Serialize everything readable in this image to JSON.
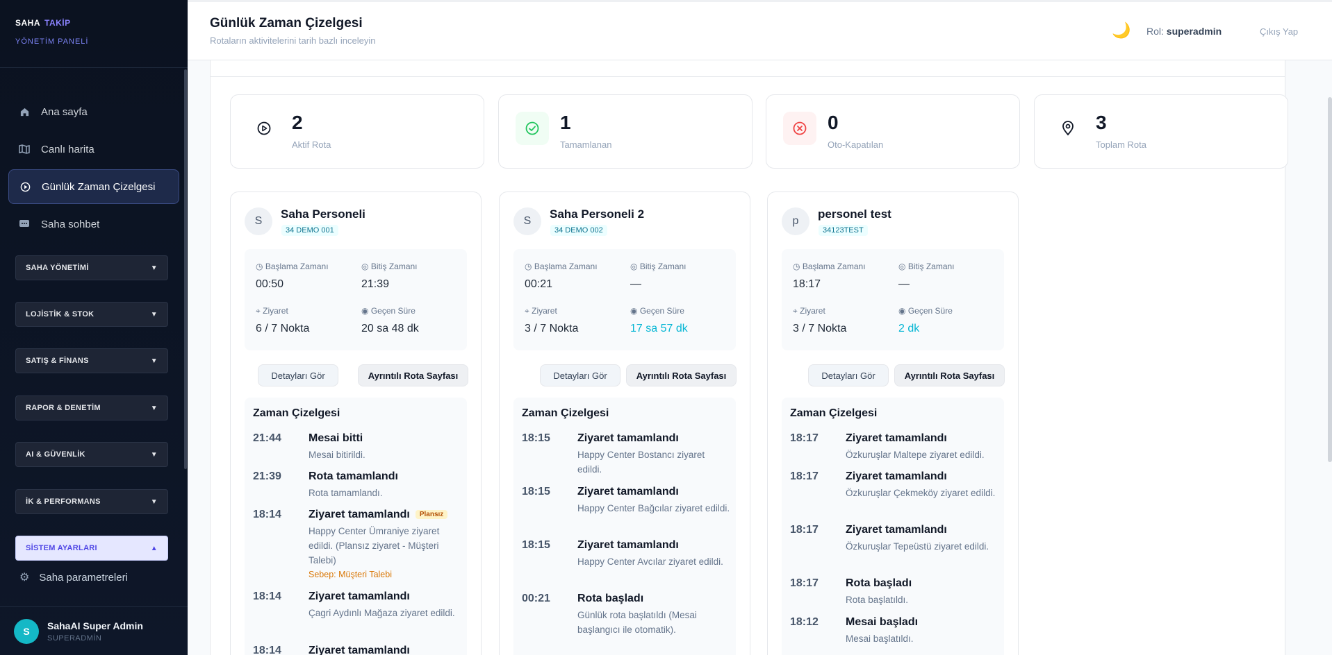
{
  "brand": {
    "word1": "SAHA",
    "word2": "TAKİP",
    "subtitle": "YÖNETİM PANELİ"
  },
  "sidebar": {
    "nav": [
      {
        "label": "Ana sayfa",
        "icon": "home-icon"
      },
      {
        "label": "Canlı harita",
        "icon": "map-icon"
      },
      {
        "label": "Günlük Zaman Çizelgesi",
        "icon": "play-circle-icon",
        "active": true
      },
      {
        "label": "Saha sohbet",
        "icon": "chat-icon"
      }
    ],
    "groups": [
      {
        "label": "SAHA YÖNETİMİ",
        "open": false
      },
      {
        "label": "LOJİSTİK & STOK",
        "open": false
      },
      {
        "label": "SATIŞ & FİNANS",
        "open": false
      },
      {
        "label": "RAPOR & DENETİM",
        "open": false
      },
      {
        "label": "AI & GÜVENLİK",
        "open": false
      },
      {
        "label": "İK & PERFORMANS",
        "open": false
      },
      {
        "label": "SİSTEM AYARLARI",
        "open": true
      }
    ],
    "sub_item": "Saha parametreleri",
    "user": {
      "initial": "S",
      "name": "SahaAI Super Admin",
      "role": "SUPERADMİN"
    }
  },
  "header": {
    "title": "Günlük Zaman Çizelgesi",
    "subtitle": "Rotaların aktivitelerini tarih bazlı inceleyin",
    "role_label": "Rol:",
    "role_value": "superadmin",
    "logout": "Çıkış Yap"
  },
  "stats": [
    {
      "value": "2",
      "label": "Aktif Rota",
      "icon": "play-circle-icon"
    },
    {
      "value": "1",
      "label": "Tamamlanan",
      "icon": "check-circle-icon",
      "color": "#22c55e"
    },
    {
      "value": "0",
      "label": "Oto-Kapatılan",
      "icon": "x-circle-icon",
      "color": "#ef4444"
    },
    {
      "value": "3",
      "label": "Toplam Rota",
      "icon": "map-pin-icon"
    }
  ],
  "labels": {
    "start": "Başlama Zamanı",
    "end": "Bitiş Zamanı",
    "visit": "Ziyaret",
    "elapsed": "Geçen Süre",
    "details_btn": "Detayları Gör",
    "route_btn": "Ayrıntılı Rota Sayfası",
    "timeline_title": "Zaman Çizelgesi",
    "unplanned": "Plansız"
  },
  "routes": [
    {
      "initial": "S",
      "name": "Saha Personeli",
      "plate": "34 DEMO 001",
      "start": "00:50",
      "end": "21:39",
      "visit": "6 / 7 Nokta",
      "elapsed": "20 sa 48 dk",
      "events": [
        {
          "time": "21:44",
          "title": "Mesai bitti",
          "desc": "Mesai bitirildi."
        },
        {
          "time": "21:39",
          "title": "Rota tamamlandı",
          "desc": "Rota tamamlandı."
        },
        {
          "time": "18:14",
          "title": "Ziyaret tamamlandı",
          "desc": "Happy Center Ümraniye ziyaret edildi. (Plansız ziyaret - Müşteri Talebi)",
          "reason": "Sebep: Müşteri Talebi"
        },
        {
          "time": "18:14",
          "title": "Ziyaret tamamlandı",
          "desc": "Çagri Aydınlı Mağaza ziyaret edildi."
        },
        {
          "time": "18:14",
          "title": "Ziyaret tamamlandı",
          "desc": ""
        }
      ]
    },
    {
      "initial": "S",
      "name": "Saha Personeli 2",
      "plate": "34 DEMO 002",
      "start": "00:21",
      "end": "—",
      "visit": "3 / 7 Nokta",
      "elapsed": "17 sa 57 dk",
      "events": [
        {
          "time": "18:15",
          "title": "Ziyaret tamamlandı",
          "desc": "Happy Center Bostancı ziyaret edildi."
        },
        {
          "time": "18:15",
          "title": "Ziyaret tamamlandı",
          "desc": "Happy Center Bağcılar ziyaret edildi."
        },
        {
          "time": "18:15",
          "title": "Ziyaret tamamlandı",
          "desc": "Happy Center Avcılar ziyaret edildi."
        },
        {
          "time": "00:21",
          "title": "Rota başladı",
          "desc": "Günlük rota başlatıldı (Mesai başlangıcı ile otomatik)."
        }
      ]
    },
    {
      "initial": "p",
      "name": "personel test",
      "plate": "34123TEST",
      "start": "18:17",
      "end": "—",
      "visit": "3 / 7 Nokta",
      "elapsed": "2 dk",
      "events": [
        {
          "time": "18:17",
          "title": "Ziyaret tamamlandı",
          "desc": "Özkuruşlar Maltepe ziyaret edildi."
        },
        {
          "time": "18:17",
          "title": "Ziyaret tamamlandı",
          "desc": "Özkuruşlar Çekmeköy ziyaret edildi."
        },
        {
          "time": "18:17",
          "title": "Ziyaret tamamlandı",
          "desc": "Özkuruşlar Tepeüstü ziyaret edildi."
        },
        {
          "time": "18:17",
          "title": "Rota başladı",
          "desc": "Rota başlatıldı."
        },
        {
          "time": "18:12",
          "title": "Mesai başladı",
          "desc": "Mesai başlatıldı."
        }
      ]
    }
  ]
}
